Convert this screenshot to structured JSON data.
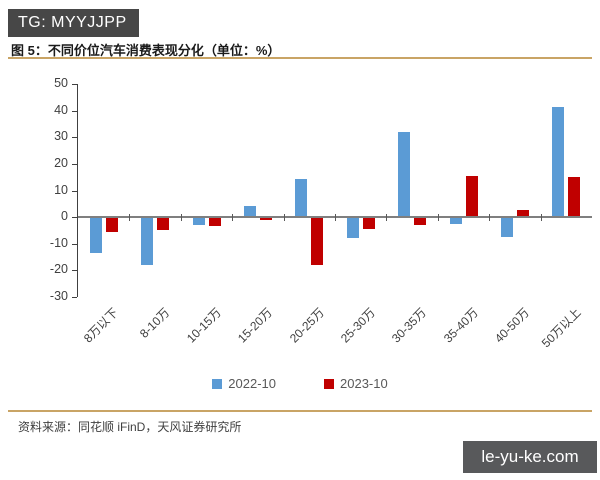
{
  "header": {
    "badge": "TG: MYYJJPP",
    "title": "图 5：不同价位汽车消费表现分化（单位：%）"
  },
  "chart_data": {
    "type": "bar",
    "title": "不同价位汽车消费表现分化",
    "unit": "%",
    "categories": [
      "8万以下",
      "8-10万",
      "10-15万",
      "15-20万",
      "20-25万",
      "25-30万",
      "30-35万",
      "35-40万",
      "40-50万",
      "50万以上"
    ],
    "series": [
      {
        "name": "2022-10",
        "color": "#5B9BD5",
        "values": [
          -13.5,
          -18,
          -3,
          4,
          14.5,
          -8,
          32,
          -2.5,
          -7.5,
          41.5
        ]
      },
      {
        "name": "2023-10",
        "color": "#C00000",
        "values": [
          -5.5,
          -5,
          -3.5,
          -1,
          -18,
          -4.5,
          -3,
          15.5,
          2.5,
          15
        ]
      }
    ],
    "ylim": [
      -30,
      50
    ],
    "ytick_step": 10,
    "grid": false,
    "legend_position": "bottom"
  },
  "footer": {
    "source": "资料来源：同花顺 iFinD，天风证券研究所"
  },
  "watermark": {
    "text": "le-yu-ke.com"
  },
  "colors": {
    "accent_rule": "#C9A465",
    "series_blue": "#5B9BD5",
    "series_red": "#C00000",
    "badge_bg": "#474747",
    "watermark_bg": "#58595B"
  }
}
